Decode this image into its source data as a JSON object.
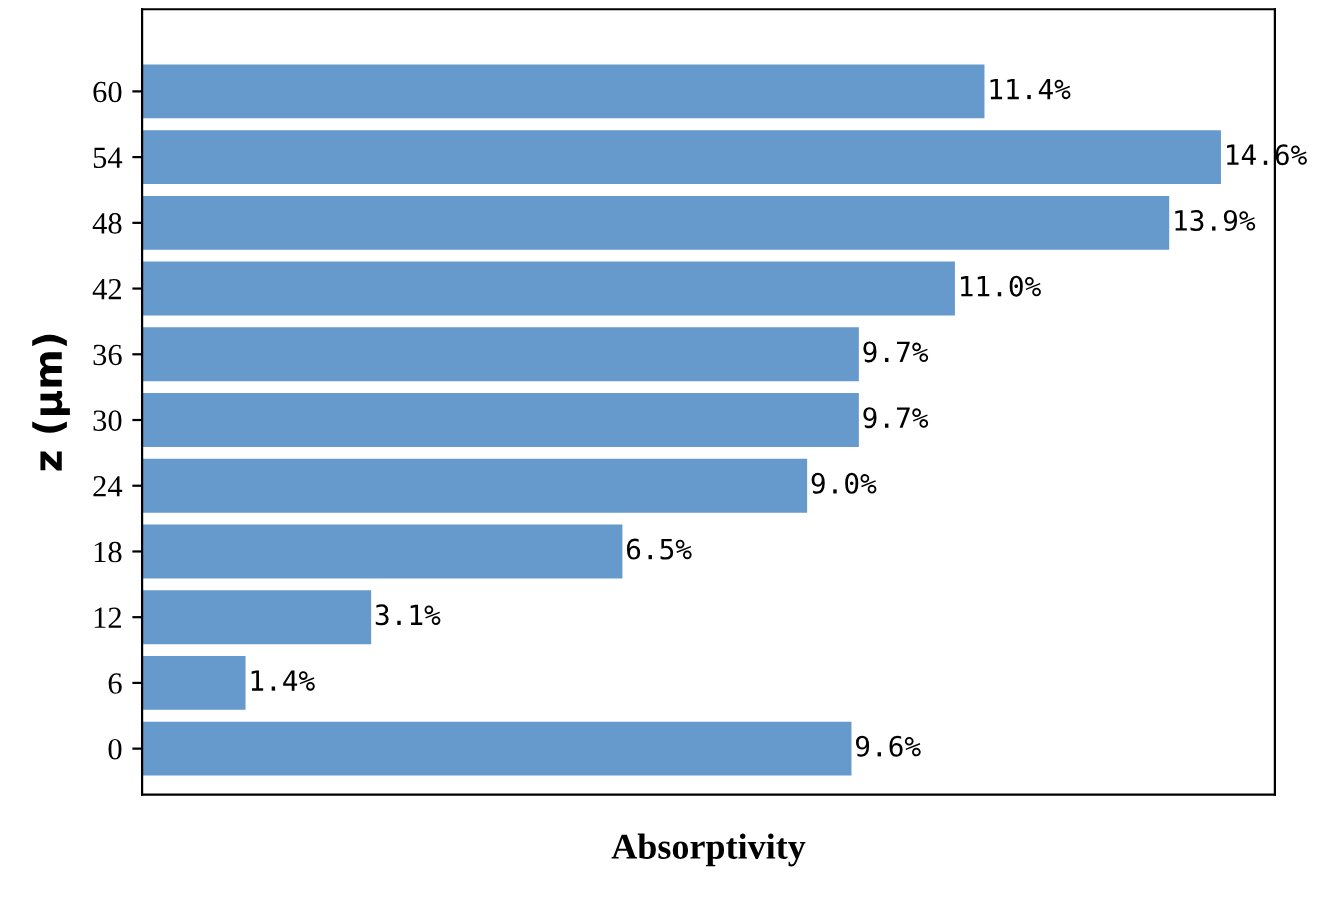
{
  "chart_data": {
    "type": "bar",
    "orientation": "horizontal",
    "xlabel": "Absorptivity",
    "ylabel": "z (μm)",
    "categories": [
      "60",
      "54",
      "48",
      "42",
      "36",
      "30",
      "24",
      "18",
      "12",
      "6",
      "0"
    ],
    "values": [
      11.4,
      14.6,
      13.9,
      11.0,
      9.7,
      9.7,
      9.0,
      6.5,
      3.1,
      1.4,
      9.6
    ],
    "value_labels": [
      "11.4%",
      "14.6%",
      "13.9%",
      "11.0%",
      "9.7%",
      "9.7%",
      "9.0%",
      "6.5%",
      "3.1%",
      "1.4%",
      "9.6%"
    ],
    "color": "#6699cc",
    "tick_labels": "y",
    "grid": false,
    "legend": false
  }
}
